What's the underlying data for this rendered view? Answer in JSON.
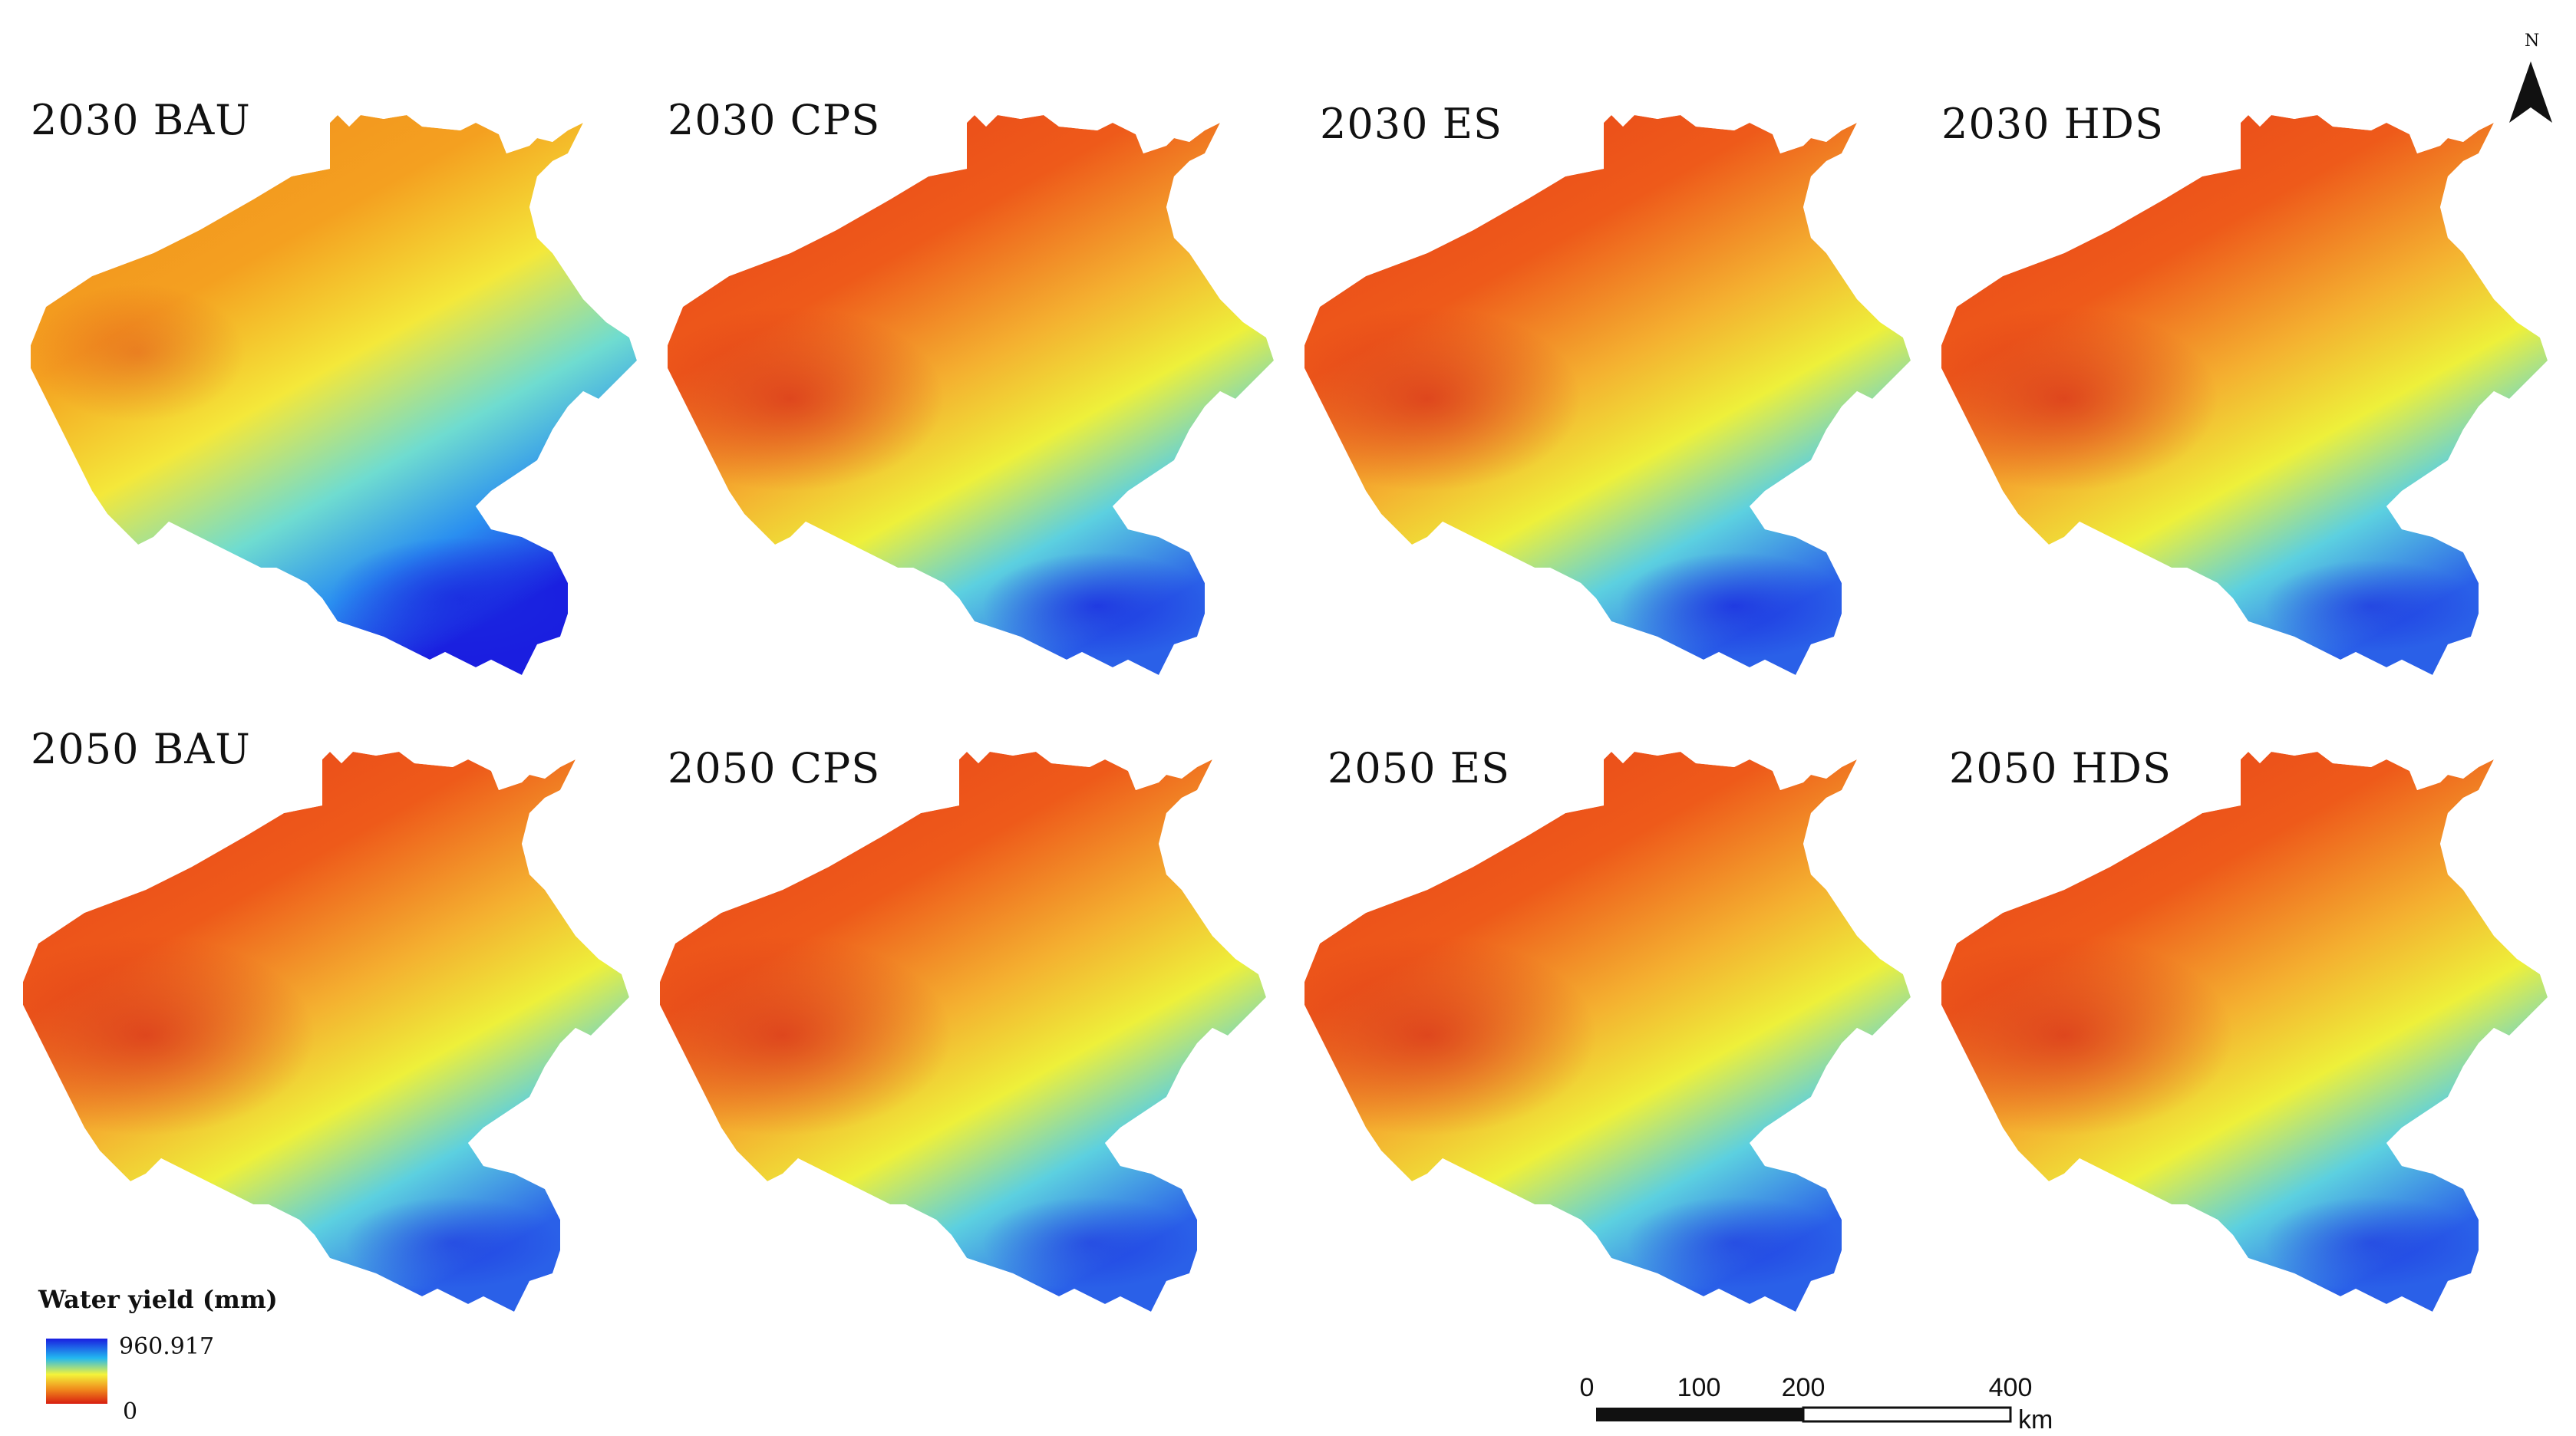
{
  "panels": [
    {
      "title": "2030 BAU"
    },
    {
      "title": "2030 CPS"
    },
    {
      "title": "2030 ES"
    },
    {
      "title": "2030 HDS"
    },
    {
      "title": "2050 BAU"
    },
    {
      "title": "2050 CPS"
    },
    {
      "title": "2050 ES"
    },
    {
      "title": "2050 HDS"
    }
  ],
  "legend": {
    "title": "Water yield (mm)",
    "max_label": "960.917",
    "min_label": "0",
    "colors": [
      "#1a1ee0",
      "#22b8f0",
      "#f4f43a",
      "#f08a1c",
      "#d81e10"
    ]
  },
  "scale_bar": {
    "ticks": [
      "0",
      "100",
      "200",
      "400"
    ],
    "unit": "km"
  },
  "north_arrow": {
    "label": "N",
    "icon": "north-arrow-icon"
  }
}
